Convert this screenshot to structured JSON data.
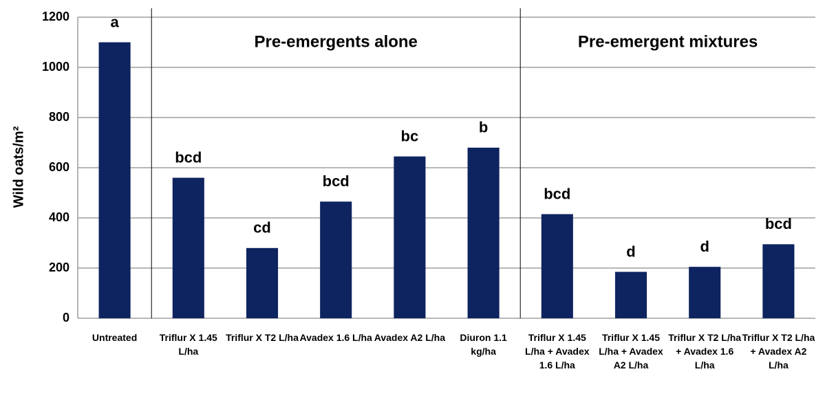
{
  "chart_data": {
    "type": "bar",
    "ylabel": "Wild oats/m²",
    "categories": [
      "Untreated",
      "Triflur X 1.45 L/ha",
      "Triflur X T2 L/ha",
      "Avadex 1.6 L/ha",
      "Avadex A2 L/ha",
      "Diuron 1.1 kg/ha",
      "Triflur X 1.45 L/ha + Avadex 1.6 L/ha",
      "Triflur X 1.45 L/ha + Avadex A2 L/ha",
      "Triflur X T2 L/ha + Avadex 1.6 L/ha",
      "Triflur X T2 L/ha + Avadex A2 L/ha"
    ],
    "values": [
      1100,
      560,
      280,
      465,
      645,
      680,
      415,
      185,
      205,
      295
    ],
    "letters": [
      "a",
      "bcd",
      "cd",
      "bcd",
      "bc",
      "b",
      "bcd",
      "d",
      "d",
      "bcd"
    ],
    "groups": [
      {
        "label": "Pre-emergents alone",
        "start": 1,
        "end": 5
      },
      {
        "label": "Pre-emergent mixtures",
        "start": 6,
        "end": 9
      }
    ],
    "color": "#0e2460",
    "ylim": [
      0,
      1200
    ],
    "yticks": [
      0,
      200,
      400,
      600,
      800,
      1000,
      1200
    ],
    "grid": true
  }
}
